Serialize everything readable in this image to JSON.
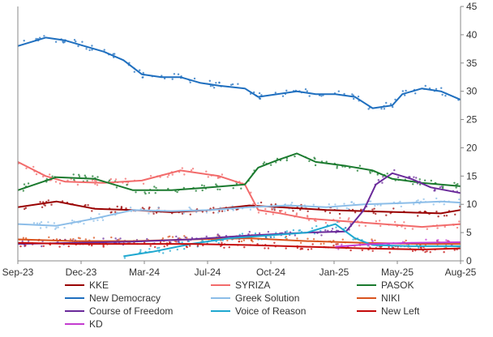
{
  "chart_data": {
    "type": "line",
    "title": "",
    "xlabel": "",
    "ylabel": "",
    "ylim": [
      0,
      45
    ],
    "xlim": [
      "2023-09-01",
      "2025-08-01"
    ],
    "x_ticks": [
      "Sep-23",
      "Dec-23",
      "Mar-24",
      "Jul-24",
      "Oct-24",
      "Jan-25",
      "May-25",
      "Aug-25"
    ],
    "y_ticks": [
      0,
      5,
      10,
      15,
      20,
      25,
      30,
      35,
      40,
      45
    ],
    "y_axis_side": "right",
    "grid": false,
    "legend": "bottom",
    "series": [
      {
        "name": "KKE",
        "color": "#990000",
        "points": [
          [
            "2023-09-01",
            9.5
          ],
          [
            "2023-11-01",
            10.5
          ],
          [
            "2024-01-01",
            9.2
          ],
          [
            "2024-03-01",
            9.0
          ],
          [
            "2024-05-01",
            8.6
          ],
          [
            "2024-07-01",
            9.0
          ],
          [
            "2024-09-01",
            9.8
          ],
          [
            "2024-11-01",
            9.4
          ],
          [
            "2025-01-01",
            9.0
          ],
          [
            "2025-03-01",
            8.8
          ],
          [
            "2025-05-01",
            8.6
          ],
          [
            "2025-07-01",
            8.4
          ],
          [
            "2025-08-01",
            9.0
          ]
        ]
      },
      {
        "name": "SYRIZA",
        "color": "#f26b6b",
        "points": [
          [
            "2023-09-01",
            17.5
          ],
          [
            "2023-10-15",
            15.0
          ],
          [
            "2023-11-15",
            14.0
          ],
          [
            "2024-01-15",
            13.8
          ],
          [
            "2024-03-15",
            14.2
          ],
          [
            "2024-05-15",
            16.0
          ],
          [
            "2024-07-15",
            15.0
          ],
          [
            "2024-08-25",
            13.5
          ],
          [
            "2024-09-15",
            9.0
          ],
          [
            "2024-10-15",
            8.5
          ],
          [
            "2024-12-01",
            7.5
          ],
          [
            "2025-02-01",
            7.0
          ],
          [
            "2025-04-01",
            6.5
          ],
          [
            "2025-06-01",
            6.0
          ],
          [
            "2025-08-01",
            6.5
          ]
        ]
      },
      {
        "name": "PASOK",
        "color": "#1a7a2e",
        "points": [
          [
            "2023-09-01",
            12.5
          ],
          [
            "2023-11-01",
            14.8
          ],
          [
            "2024-01-01",
            14.5
          ],
          [
            "2024-03-01",
            12.5
          ],
          [
            "2024-05-01",
            12.5
          ],
          [
            "2024-07-01",
            13.0
          ],
          [
            "2024-08-25",
            13.5
          ],
          [
            "2024-09-15",
            16.5
          ],
          [
            "2024-10-15",
            17.8
          ],
          [
            "2024-11-15",
            19.0
          ],
          [
            "2024-12-15",
            17.5
          ],
          [
            "2025-02-01",
            16.8
          ],
          [
            "2025-03-15",
            16.0
          ],
          [
            "2025-04-15",
            14.5
          ],
          [
            "2025-06-01",
            13.8
          ],
          [
            "2025-08-01",
            13.2
          ]
        ]
      },
      {
        "name": "New Democracy",
        "color": "#1f6fbf",
        "points": [
          [
            "2023-09-01",
            38.0
          ],
          [
            "2023-10-15",
            39.5
          ],
          [
            "2023-11-15",
            39.0
          ],
          [
            "2023-12-15",
            38.0
          ],
          [
            "2024-01-15",
            37.0
          ],
          [
            "2024-02-15",
            35.5
          ],
          [
            "2024-03-15",
            33.0
          ],
          [
            "2024-04-15",
            32.5
          ],
          [
            "2024-05-15",
            32.5
          ],
          [
            "2024-06-15",
            31.5
          ],
          [
            "2024-07-15",
            31.0
          ],
          [
            "2024-08-25",
            30.5
          ],
          [
            "2024-09-15",
            29.0
          ],
          [
            "2024-10-15",
            29.5
          ],
          [
            "2024-11-15",
            30.0
          ],
          [
            "2024-12-15",
            29.5
          ],
          [
            "2025-01-15",
            29.5
          ],
          [
            "2025-02-15",
            29.0
          ],
          [
            "2025-03-15",
            27.0
          ],
          [
            "2025-04-15",
            27.5
          ],
          [
            "2025-05-01",
            29.5
          ],
          [
            "2025-06-01",
            30.5
          ],
          [
            "2025-07-01",
            30.0
          ],
          [
            "2025-08-01",
            28.5
          ]
        ]
      },
      {
        "name": "Greek Solution",
        "color": "#8cbde8",
        "points": [
          [
            "2023-09-01",
            6.5
          ],
          [
            "2023-11-01",
            6.2
          ],
          [
            "2024-01-01",
            7.5
          ],
          [
            "2024-03-01",
            9.0
          ],
          [
            "2024-05-01",
            8.8
          ],
          [
            "2024-07-01",
            9.0
          ],
          [
            "2024-09-01",
            9.5
          ],
          [
            "2024-11-01",
            9.8
          ],
          [
            "2025-01-01",
            9.5
          ],
          [
            "2025-03-01",
            10.0
          ],
          [
            "2025-05-01",
            10.2
          ],
          [
            "2025-07-01",
            10.5
          ],
          [
            "2025-08-01",
            10.3
          ]
        ]
      },
      {
        "name": "NIKI",
        "color": "#d9541e",
        "points": [
          [
            "2023-09-01",
            3.8
          ],
          [
            "2023-12-01",
            3.5
          ],
          [
            "2024-03-01",
            3.5
          ],
          [
            "2024-06-01",
            3.8
          ],
          [
            "2024-09-01",
            4.0
          ],
          [
            "2024-12-01",
            3.5
          ],
          [
            "2025-03-01",
            3.2
          ],
          [
            "2025-06-01",
            3.0
          ],
          [
            "2025-08-01",
            3.0
          ]
        ]
      },
      {
        "name": "Course of Freedom",
        "color": "#6a2a9a",
        "points": [
          [
            "2023-09-01",
            3.0
          ],
          [
            "2023-12-01",
            3.2
          ],
          [
            "2024-03-01",
            3.4
          ],
          [
            "2024-06-01",
            3.8
          ],
          [
            "2024-09-01",
            4.5
          ],
          [
            "2024-12-01",
            5.0
          ],
          [
            "2025-02-01",
            5.2
          ],
          [
            "2025-03-01",
            9.0
          ],
          [
            "2025-03-20",
            13.5
          ],
          [
            "2025-04-15",
            15.5
          ],
          [
            "2025-05-15",
            14.5
          ],
          [
            "2025-06-15",
            13.0
          ],
          [
            "2025-08-01",
            12.0
          ]
        ]
      },
      {
        "name": "Voice of Reason",
        "color": "#1fa8d0",
        "points": [
          [
            "2024-02-15",
            0.8
          ],
          [
            "2024-04-01",
            1.6
          ],
          [
            "2024-06-01",
            3.0
          ],
          [
            "2024-08-01",
            4.0
          ],
          [
            "2024-10-01",
            4.5
          ],
          [
            "2024-12-01",
            5.0
          ],
          [
            "2025-01-15",
            6.5
          ],
          [
            "2025-02-15",
            4.0
          ],
          [
            "2025-03-15",
            2.8
          ],
          [
            "2025-05-15",
            2.6
          ],
          [
            "2025-08-01",
            2.6
          ]
        ]
      },
      {
        "name": "New Left",
        "color": "#c40a0a",
        "points": [
          [
            "2023-09-01",
            3.2
          ],
          [
            "2023-12-01",
            3.0
          ],
          [
            "2024-03-01",
            3.0
          ],
          [
            "2024-06-01",
            3.0
          ],
          [
            "2024-09-01",
            2.8
          ],
          [
            "2024-12-01",
            2.5
          ],
          [
            "2025-03-01",
            2.2
          ],
          [
            "2025-06-01",
            2.0
          ],
          [
            "2025-08-01",
            2.2
          ]
        ]
      },
      {
        "name": "KD",
        "color": "#c43cd0",
        "points": [
          [
            "2025-01-15",
            2.5
          ],
          [
            "2025-03-15",
            3.0
          ],
          [
            "2025-05-15",
            3.2
          ],
          [
            "2025-08-01",
            3.3
          ]
        ]
      }
    ]
  }
}
